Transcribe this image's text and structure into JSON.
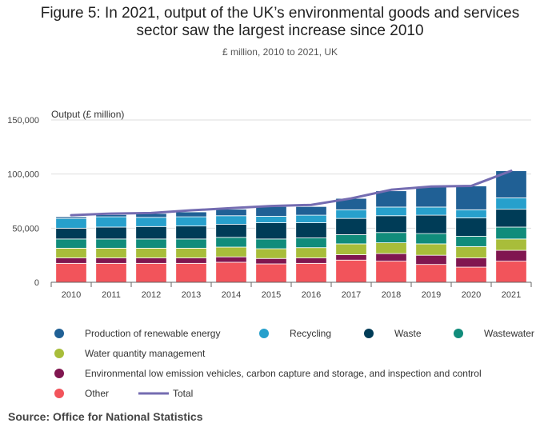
{
  "title_line1": "Figure 5: In 2021, output of the UK’s environmental goods and services",
  "title_line2": "sector saw the largest increase since 2010",
  "subtitle": "£ million, 2010 to 2021, UK",
  "source": "Source: Office for National Statistics",
  "chart_data": {
    "type": "bar",
    "stacked": true,
    "categories": [
      "2010",
      "2011",
      "2012",
      "2013",
      "2014",
      "2015",
      "2016",
      "2017",
      "2018",
      "2019",
      "2020",
      "2021"
    ],
    "ylabel": "Output (£ million)",
    "ylim": [
      0,
      150000
    ],
    "yticks": [
      0,
      50000,
      100000,
      150000
    ],
    "ytick_labels": [
      "0",
      "50,000",
      "100,000",
      "150,000"
    ],
    "grid": true,
    "legend_position": "bottom",
    "series": [
      {
        "name": "Other",
        "color": "#f2545b",
        "values": [
          17500,
          17500,
          17500,
          17500,
          18500,
          17000,
          17500,
          20500,
          19500,
          16500,
          14000,
          19500
        ]
      },
      {
        "name": "Environmental low emission vehicles, carbon capture and storage, and inspection and control",
        "color": "#801650",
        "values": [
          5000,
          5000,
          5000,
          5000,
          5000,
          5000,
          5000,
          5000,
          7000,
          8500,
          8500,
          10000
        ]
      },
      {
        "name": "Water quantity management",
        "color": "#a8bd3a",
        "values": [
          9000,
          9000,
          9000,
          9000,
          9000,
          9000,
          9500,
          10000,
          10000,
          10500,
          10500,
          10500
        ]
      },
      {
        "name": "Wastewater",
        "color": "#118c7b",
        "values": [
          8500,
          8500,
          8500,
          8500,
          9000,
          9000,
          9000,
          8500,
          9500,
          9500,
          9500,
          11000
        ]
      },
      {
        "name": "Waste",
        "color": "#003c57",
        "values": [
          10000,
          11000,
          11500,
          12000,
          12000,
          15000,
          14000,
          15000,
          15500,
          17000,
          17000,
          16500
        ]
      },
      {
        "name": "Recycling",
        "color": "#27a0cc",
        "values": [
          9000,
          9500,
          8500,
          8500,
          8000,
          6000,
          7000,
          8000,
          8000,
          7500,
          7500,
          10500
        ]
      },
      {
        "name": "Production of renewable energy",
        "color": "#206095",
        "values": [
          1500,
          2000,
          3500,
          4500,
          6000,
          9000,
          8000,
          10500,
          15000,
          19000,
          22000,
          25000
        ]
      }
    ],
    "line_series": {
      "name": "Total",
      "color": "#746cb1",
      "values": [
        62000,
        63500,
        64000,
        66500,
        68500,
        70500,
        71500,
        77500,
        85500,
        88500,
        89000,
        103000
      ]
    }
  },
  "legend": [
    {
      "name": "Production of renewable energy",
      "color": "#206095",
      "kind": "dot"
    },
    {
      "name": "Recycling",
      "color": "#27a0cc",
      "kind": "dot"
    },
    {
      "name": "Waste",
      "color": "#003c57",
      "kind": "dot"
    },
    {
      "name": "Wastewater",
      "color": "#118c7b",
      "kind": "dot"
    },
    {
      "name": "Water quantity management",
      "color": "#a8bd3a",
      "kind": "dot"
    },
    {
      "name": "Environmental low emission vehicles, carbon capture and storage, and inspection and control",
      "color": "#801650",
      "kind": "dot"
    },
    {
      "name": "Other",
      "color": "#f2545b",
      "kind": "dot"
    },
    {
      "name": "Total",
      "color": "#746cb1",
      "kind": "line"
    }
  ]
}
